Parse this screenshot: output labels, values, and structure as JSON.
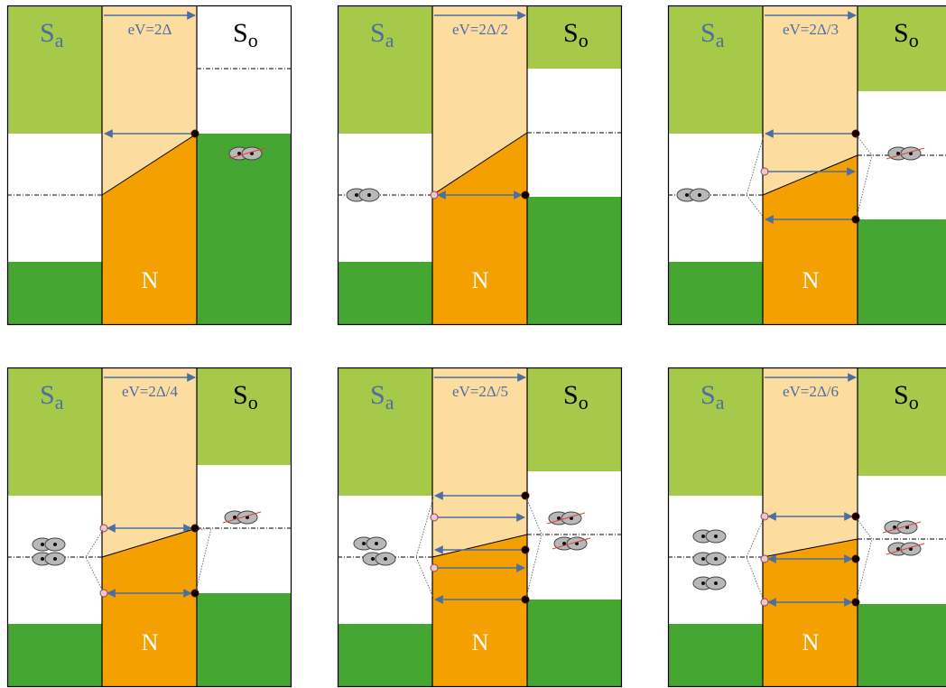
{
  "colors": {
    "superconductor_light": "#a6c94a",
    "superconductor_dark": "#46a632",
    "normal_light": "#fddc9f",
    "normal_dark": "#f3a000",
    "arrow": "#4a6fa5",
    "pair_fill": "#b8b8b8",
    "cross_line": "#e0403a",
    "filled_dot": "#000000",
    "hole_dot": "#f2c4cf"
  },
  "labels": {
    "left_electrode": "S",
    "left_subscript": "a",
    "right_electrode": "S",
    "right_subscript": "o",
    "normal_region": "N"
  },
  "panels": [
    {
      "n": 1,
      "voltage_label": "eV=2Δ"
    },
    {
      "n": 2,
      "voltage_label": "eV=2Δ/2"
    },
    {
      "n": 3,
      "voltage_label": "eV=2Δ/3"
    },
    {
      "n": 4,
      "voltage_label": "eV=2Δ/4"
    },
    {
      "n": 5,
      "voltage_label": "eV=2Δ/5"
    },
    {
      "n": 6,
      "voltage_label": "eV=2Δ/6"
    }
  ]
}
